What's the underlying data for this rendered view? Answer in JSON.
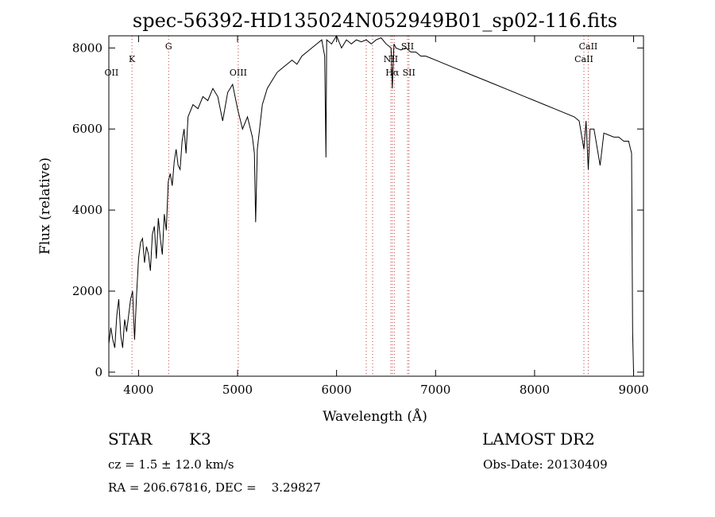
{
  "chart_data": {
    "type": "line",
    "title": "spec-56392-HD135024N052949B01_sp02-116.fits",
    "xlabel": "Wavelength (Å)",
    "ylabel": "Flux (relative)",
    "xlim": [
      3700,
      9100
    ],
    "ylim": [
      -100,
      8300
    ],
    "xticks": [
      4000,
      5000,
      6000,
      7000,
      8000,
      9000
    ],
    "yticks": [
      0,
      2000,
      4000,
      6000,
      8000
    ],
    "grid": false,
    "series": [
      {
        "x": [
          3700,
          3720,
          3740,
          3760,
          3780,
          3800,
          3820,
          3840,
          3860,
          3880,
          3900,
          3920,
          3940,
          3960,
          3980,
          4000,
          4020,
          4040,
          4060,
          4080,
          4100,
          4120,
          4140,
          4160,
          4180,
          4200,
          4220,
          4240,
          4260,
          4280,
          4300,
          4320,
          4340,
          4360,
          4380,
          4400,
          4420,
          4440,
          4460,
          4480,
          4500,
          4550,
          4600,
          4650,
          4700,
          4750,
          4800,
          4850,
          4900,
          4950,
          5000,
          5050,
          5100,
          5150,
          5170,
          5183,
          5200,
          5250,
          5300,
          5350,
          5400,
          5450,
          5500,
          5550,
          5600,
          5650,
          5700,
          5750,
          5800,
          5850,
          5880,
          5893,
          5900,
          5950,
          6000,
          6050,
          6100,
          6150,
          6200,
          6250,
          6300,
          6350,
          6400,
          6450,
          6500,
          6550,
          6563,
          6580,
          6600,
          6650,
          6700,
          6750,
          6800,
          6850,
          6900,
          6950,
          7000,
          7100,
          7200,
          7300,
          7400,
          7500,
          7600,
          7700,
          7800,
          7900,
          8000,
          8100,
          8200,
          8300,
          8400,
          8450,
          8498,
          8520,
          8542,
          8560,
          8600,
          8662,
          8700,
          8800,
          8850,
          8900,
          8950,
          8980,
          8990,
          9000
        ],
        "y": [
          700,
          1100,
          800,
          600,
          1400,
          1800,
          900,
          600,
          1300,
          1000,
          1400,
          1800,
          2000,
          800,
          1900,
          2800,
          3200,
          3300,
          2700,
          3100,
          2900,
          2500,
          3400,
          3600,
          2800,
          3800,
          3300,
          2900,
          3900,
          3500,
          4700,
          4900,
          4600,
          5200,
          5500,
          5100,
          5000,
          5700,
          6000,
          5400,
          6300,
          6600,
          6500,
          6800,
          6700,
          7000,
          6800,
          6200,
          6900,
          7100,
          6500,
          6000,
          6300,
          5800,
          5400,
          3700,
          5500,
          6600,
          7000,
          7200,
          7400,
          7500,
          7600,
          7700,
          7600,
          7800,
          7900,
          8000,
          8100,
          8200,
          7800,
          5300,
          8200,
          8100,
          8300,
          8000,
          8200,
          8100,
          8200,
          8150,
          8200,
          8100,
          8200,
          8250,
          8100,
          8000,
          7000,
          8100,
          8000,
          7950,
          8000,
          7900,
          7900,
          7800,
          7800,
          7750,
          7700,
          7600,
          7500,
          7400,
          7300,
          7200,
          7100,
          7000,
          6900,
          6800,
          6700,
          6600,
          6500,
          6400,
          6300,
          6200,
          5500,
          6200,
          5000,
          6000,
          6000,
          5100,
          5900,
          5800,
          5800,
          5700,
          5700,
          5400,
          1000,
          0
        ]
      }
    ],
    "line_labels": [
      {
        "label": "OII",
        "x": 3727,
        "row": "low"
      },
      {
        "label": "K",
        "x": 3934,
        "row": "mid"
      },
      {
        "label": "G",
        "x": 4304,
        "row": "high"
      },
      {
        "label": "OIII",
        "x": 5007,
        "row": "low"
      },
      {
        "label": "NII",
        "x": 6548,
        "row": "mid"
      },
      {
        "label": "Hα",
        "x": 6563,
        "row": "low"
      },
      {
        "label": "SII",
        "x": 6731,
        "row": "low"
      },
      {
        "label": "SII",
        "x": 6717,
        "row": "high"
      },
      {
        "label": "CaII",
        "x": 8542,
        "row": "high"
      },
      {
        "label": "CaII",
        "x": 8498,
        "row": "mid"
      }
    ],
    "line_markers": [
      3934,
      4304,
      5007,
      6300,
      6364,
      6548,
      6563,
      6583,
      6717,
      6731,
      8498,
      8542
    ]
  },
  "info": {
    "object_class": "STAR",
    "subclass": "K3",
    "survey": "LAMOST DR2",
    "redshift": "cz = 1.5 ± 12.0 km/s",
    "obs_date": "Obs-Date: 20130409",
    "coords": "RA = 206.67816, DEC =    3.29827"
  }
}
